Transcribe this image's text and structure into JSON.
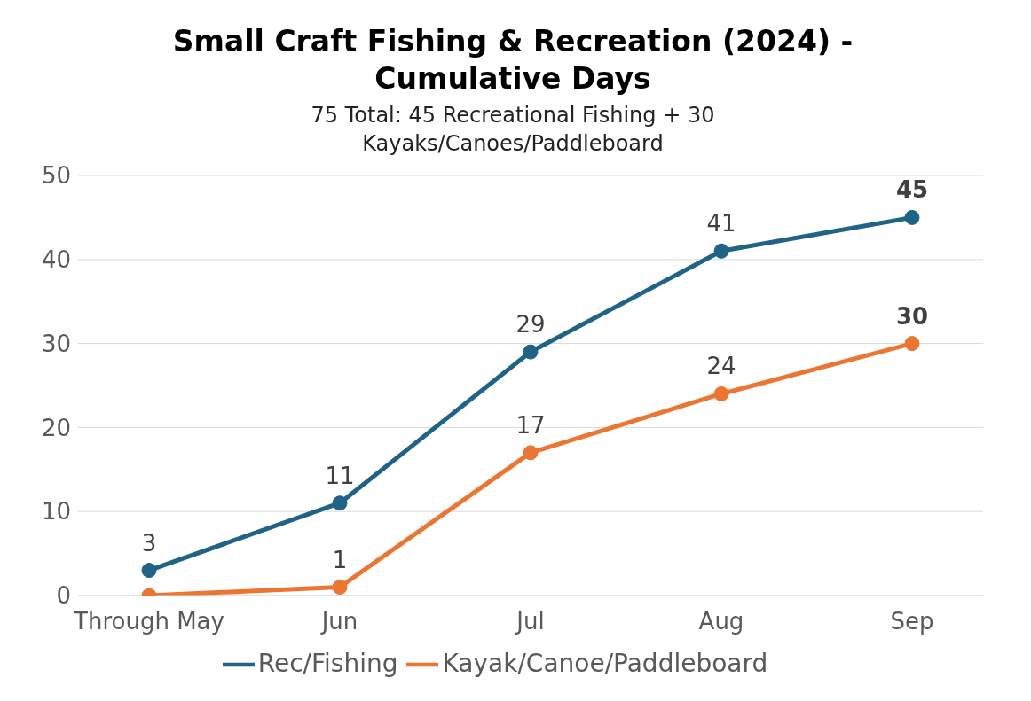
{
  "chart_data": {
    "type": "line",
    "title": "Small Craft Fishing & Recreation (2024) - Cumulative Days",
    "subtitle": "75 Total: 45 Recreational Fishing + 30 Kayaks/Canoes/Paddleboard",
    "categories": [
      "Through May",
      "Jun",
      "Jul",
      "Aug",
      "Sep"
    ],
    "series": [
      {
        "name": "Rec/Fishing",
        "color": "#1f6386",
        "values": [
          3,
          11,
          29,
          41,
          45
        ],
        "value_labels": [
          "3",
          "11",
          "29",
          "41",
          "45"
        ]
      },
      {
        "name": "Kayak/Canoe/Paddleboard",
        "color": "#ed7532",
        "values": [
          0,
          1,
          17,
          24,
          30
        ],
        "value_labels": [
          null,
          "1",
          "17",
          "24",
          "30"
        ]
      }
    ],
    "ylim": [
      0,
      50
    ],
    "yticks": [
      0,
      10,
      20,
      30,
      40,
      50
    ],
    "grid": "y",
    "legend": "bottom",
    "marker": "circle",
    "line_style": "solid"
  }
}
